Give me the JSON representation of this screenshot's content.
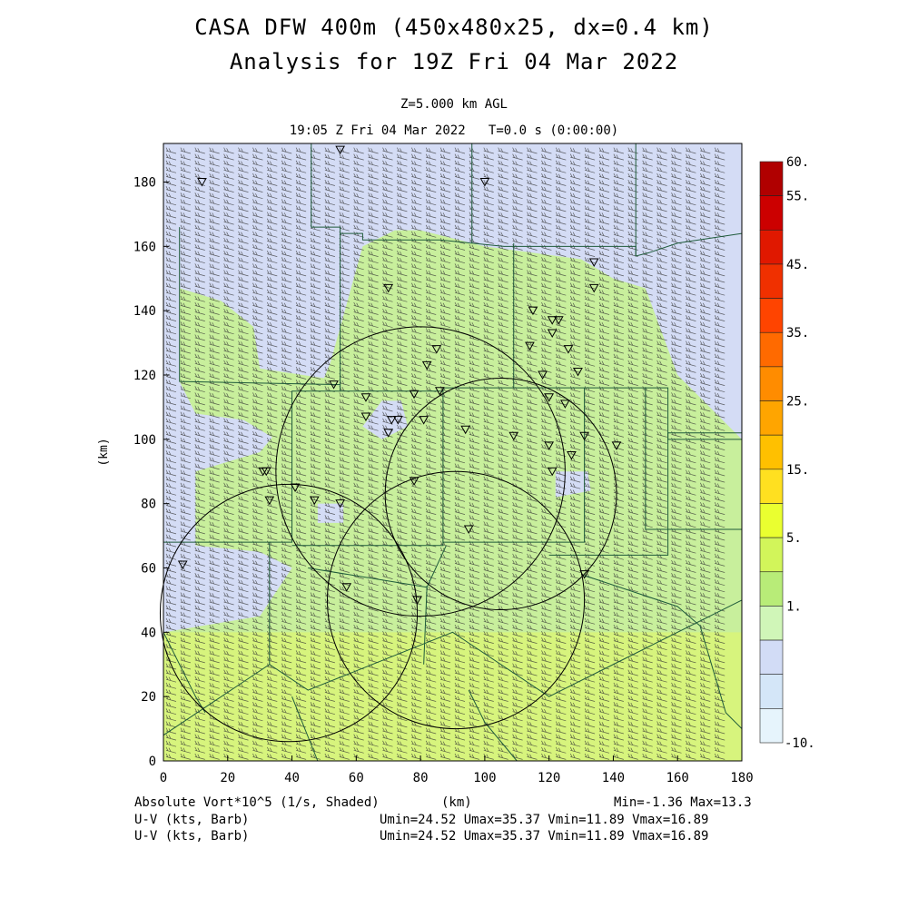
{
  "header": {
    "title_line1": "CASA DFW 400m (450x480x25, dx=0.4 km)",
    "title_line2": "Analysis for 19Z Fri 04 Mar 2022",
    "level": "Z=5.000 km AGL",
    "time": "19:05 Z Fri 04 Mar 2022   T=0.0 s (0:00:00)"
  },
  "footer": {
    "field_label": "Absolute Vort*10^5 (1/s, Shaded)",
    "x_unit": "(km)",
    "minmax": "Min=-1.36 Max=13.3",
    "wind1_label": "U-V (kts, Barb)",
    "wind1_stats": "Umin=24.52 Umax=35.37 Vmin=11.89 Vmax=16.89",
    "wind2_label": "U-V (kts, Barb)",
    "wind2_stats": "Umin=24.52 Umax=35.37 Vmin=11.89 Vmax=16.89"
  },
  "chart_data": {
    "type": "heatmap",
    "xlabel": "(km)",
    "ylabel": "(km)",
    "xlim": [
      0,
      180
    ],
    "ylim": [
      0,
      192
    ],
    "x_ticks": [
      "0",
      "20",
      "40",
      "60",
      "80",
      "100",
      "120",
      "140",
      "160",
      "180"
    ],
    "y_ticks": [
      "0",
      "20",
      "40",
      "60",
      "80",
      "100",
      "120",
      "140",
      "160",
      "180"
    ],
    "colorbar": {
      "labels": [
        "60.",
        "55.",
        "45.",
        "35.",
        "25.",
        "15.",
        "5.",
        "1.",
        "-10."
      ],
      "colors": [
        "#b00000",
        "#cc0000",
        "#e01800",
        "#f03000",
        "#ff4400",
        "#ff6a00",
        "#ff8c00",
        "#ffa500",
        "#ffc000",
        "#ffe020",
        "#eaff30",
        "#d2f55a",
        "#b8ec78",
        "#d0f6b8",
        "#d2dcf6",
        "#d4e6f8",
        "#e6f4fc"
      ],
      "color_legend": {
        "vort_lt_1": "#d4dcf5",
        "vort_1_5": "#c8ef9c",
        "vort_5_15": "#d8f47a"
      }
    },
    "field_stats": {
      "min": -1.36,
      "max": 13.3
    },
    "wind_stats": {
      "umin": 24.52,
      "umax": 35.37,
      "vmin": 11.89,
      "vmax": 16.89
    },
    "radar_circles_km": [
      {
        "cx": 105,
        "cy": 83,
        "r": 36
      },
      {
        "cx": 80,
        "cy": 90,
        "r": 45
      },
      {
        "cx": 91,
        "cy": 50,
        "r": 40
      },
      {
        "cx": 39,
        "cy": 46,
        "r": 40
      }
    ],
    "station_markers_km": [
      [
        55,
        190
      ],
      [
        12,
        180
      ],
      [
        100,
        180
      ],
      [
        70,
        147
      ],
      [
        134,
        155
      ],
      [
        134,
        147
      ],
      [
        115,
        140
      ],
      [
        121,
        137
      ],
      [
        123,
        137
      ],
      [
        121,
        133
      ],
      [
        114,
        129
      ],
      [
        126,
        128
      ],
      [
        85,
        128
      ],
      [
        82,
        123
      ],
      [
        118,
        120
      ],
      [
        129,
        121
      ],
      [
        53,
        117
      ],
      [
        78,
        114
      ],
      [
        86,
        115
      ],
      [
        63,
        113
      ],
      [
        120,
        113
      ],
      [
        125,
        111
      ],
      [
        63,
        107
      ],
      [
        71,
        106
      ],
      [
        73,
        106
      ],
      [
        81,
        106
      ],
      [
        70,
        102
      ],
      [
        94,
        103
      ],
      [
        109,
        101
      ],
      [
        131,
        101
      ],
      [
        141,
        98
      ],
      [
        120,
        98
      ],
      [
        127,
        95
      ],
      [
        121,
        90
      ],
      [
        31,
        90
      ],
      [
        32,
        90
      ],
      [
        78,
        87
      ],
      [
        41,
        85
      ],
      [
        33,
        81
      ],
      [
        47,
        81
      ],
      [
        55,
        80
      ],
      [
        95,
        72
      ],
      [
        6,
        61
      ],
      [
        131,
        58
      ],
      [
        57,
        54
      ],
      [
        79,
        50
      ]
    ]
  }
}
